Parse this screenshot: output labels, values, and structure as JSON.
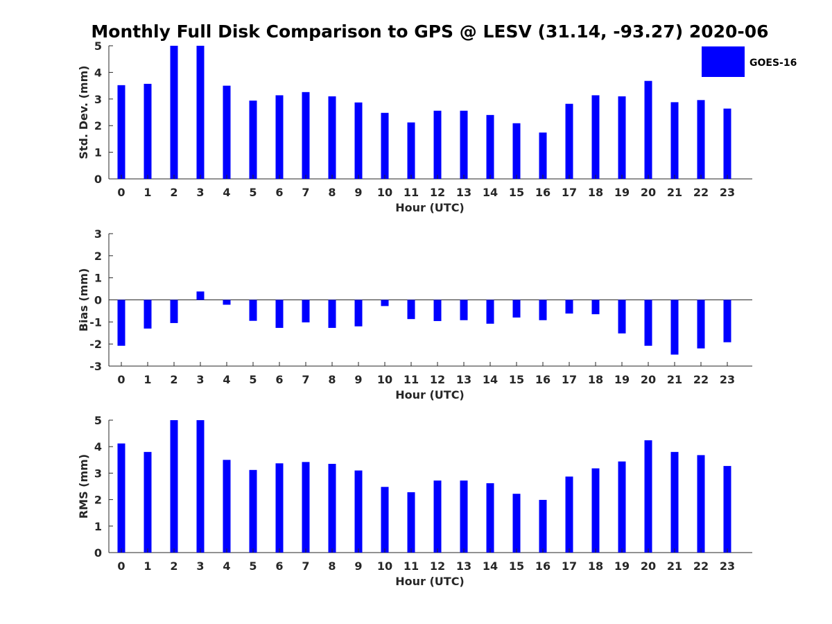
{
  "figure_title": "Monthly Full Disk Comparison to GPS @ LESV (31.14, -93.27) 2020-06",
  "legend": {
    "label": "GOES-16",
    "color": "#0000ff"
  },
  "chart_data": [
    {
      "type": "bar",
      "name": "std-dev",
      "xlabel": "Hour (UTC)",
      "ylabel": "Std. Dev. (mm)",
      "ylim": [
        0,
        5
      ],
      "yticks": [
        "0",
        "1",
        "2",
        "3",
        "4",
        "5"
      ],
      "categories": [
        "0",
        "1",
        "2",
        "3",
        "4",
        "5",
        "6",
        "7",
        "8",
        "9",
        "10",
        "11",
        "12",
        "13",
        "14",
        "15",
        "16",
        "17",
        "18",
        "19",
        "20",
        "21",
        "22",
        "23"
      ],
      "series": [
        {
          "name": "GOES-16",
          "values": [
            3.52,
            3.57,
            5.0,
            5.0,
            3.5,
            2.94,
            3.14,
            3.26,
            3.1,
            2.87,
            2.48,
            2.12,
            2.56,
            2.56,
            2.4,
            2.09,
            1.74,
            2.82,
            3.14,
            3.1,
            3.68,
            2.88,
            2.96,
            2.64
          ]
        }
      ]
    },
    {
      "type": "bar",
      "name": "bias",
      "xlabel": "Hour (UTC)",
      "ylabel": "Bias (mm)",
      "ylim": [
        -3,
        3
      ],
      "yticks": [
        "-3",
        "-2",
        "-1",
        "0",
        "1",
        "2",
        "3"
      ],
      "categories": [
        "0",
        "1",
        "2",
        "3",
        "4",
        "5",
        "6",
        "7",
        "8",
        "9",
        "10",
        "11",
        "12",
        "13",
        "14",
        "15",
        "16",
        "17",
        "18",
        "19",
        "20",
        "21",
        "22",
        "23"
      ],
      "series": [
        {
          "name": "GOES-16",
          "values": [
            -2.08,
            -1.3,
            -1.05,
            0.38,
            -0.22,
            -0.95,
            -1.27,
            -1.02,
            -1.27,
            -1.2,
            -0.28,
            -0.87,
            -0.96,
            -0.92,
            -1.08,
            -0.8,
            -0.92,
            -0.62,
            -0.65,
            -1.52,
            -2.08,
            -2.48,
            -2.2,
            -1.92
          ]
        }
      ]
    },
    {
      "type": "bar",
      "name": "rms",
      "xlabel": "Hour (UTC)",
      "ylabel": "RMS (mm)",
      "ylim": [
        0,
        5
      ],
      "yticks": [
        "0",
        "1",
        "2",
        "3",
        "4",
        "5"
      ],
      "categories": [
        "0",
        "1",
        "2",
        "3",
        "4",
        "5",
        "6",
        "7",
        "8",
        "9",
        "10",
        "11",
        "12",
        "13",
        "14",
        "15",
        "16",
        "17",
        "18",
        "19",
        "20",
        "21",
        "22",
        "23"
      ],
      "series": [
        {
          "name": "GOES-16",
          "values": [
            4.12,
            3.8,
            5.0,
            5.0,
            3.5,
            3.12,
            3.37,
            3.42,
            3.35,
            3.1,
            2.48,
            2.28,
            2.72,
            2.72,
            2.62,
            2.22,
            1.99,
            2.87,
            3.18,
            3.44,
            4.24,
            3.8,
            3.68,
            3.27
          ]
        }
      ]
    }
  ]
}
